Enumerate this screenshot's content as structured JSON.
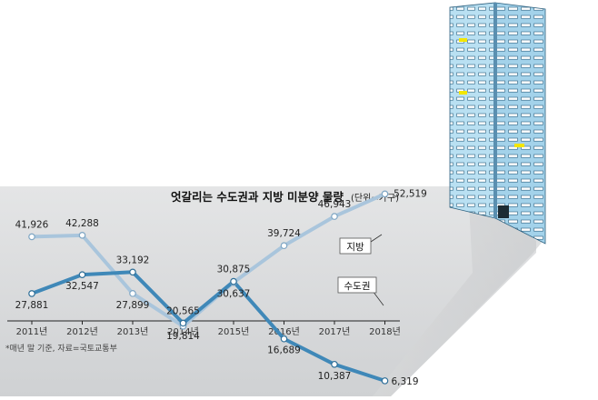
{
  "chart_data": {
    "type": "line",
    "title": "엇갈리는 수도권과 지방 미분양 물량",
    "unit": "(단위=가구)",
    "categories": [
      "2011년",
      "2012년",
      "2013년",
      "2014년",
      "2015년",
      "2016년",
      "2017년",
      "2018년"
    ],
    "series": [
      {
        "name": "지방",
        "color": "#a9c5dc",
        "values": [
          41926,
          42288,
          27899,
          19814,
          30637,
          39724,
          46943,
          52519
        ],
        "value_labels": [
          "41,926",
          "42,288",
          "27,899",
          "19,814",
          "30,637",
          "39,724",
          "46,943",
          "52,519"
        ]
      },
      {
        "name": "수도권",
        "color": "#3f88b8",
        "values": [
          27881,
          32547,
          33192,
          20565,
          30875,
          16689,
          10387,
          6319
        ],
        "value_labels": [
          "27,881",
          "32,547",
          "33,192",
          "20,565",
          "30,875",
          "16,689",
          "10,387",
          "6,319"
        ]
      }
    ],
    "ylim": [
      0,
      60000
    ],
    "grid": false,
    "legend": "right"
  },
  "footnote": "*매년 말 기준, 자료=국토교통부",
  "colors": {
    "panel": "#d4d6d8",
    "floor_shadow": "#c9cbcd",
    "building_face": "#b9e0f2",
    "building_side": "#8fc3dc",
    "window_lit": "#f3e600"
  }
}
